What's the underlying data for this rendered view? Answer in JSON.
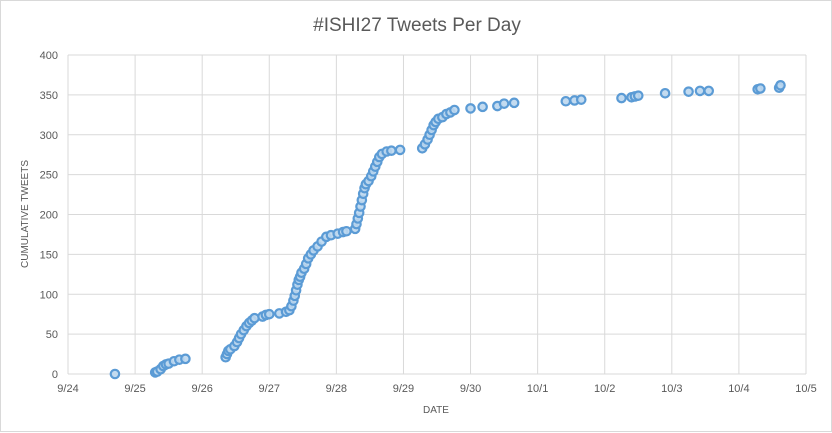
{
  "chart_data": {
    "type": "scatter",
    "title": "#ISHI27 Tweets Per Day",
    "xlabel": "DATE",
    "ylabel": "CUMULATIVE TWEETS",
    "x_ticks": [
      "9/24",
      "9/25",
      "9/26",
      "9/27",
      "9/28",
      "9/29",
      "9/30",
      "10/1",
      "10/2",
      "10/3",
      "10/4",
      "10/5"
    ],
    "y_ticks": [
      "0",
      "50",
      "100",
      "150",
      "200",
      "250",
      "300",
      "350",
      "400"
    ],
    "xlim_days": [
      0,
      11
    ],
    "ylim": [
      0,
      400
    ],
    "grid": true,
    "legend": "none",
    "marker_color": "#5b9bd5",
    "marker_fill": "#bdd7ee",
    "points": [
      [
        0.7,
        0
      ],
      [
        1.3,
        2
      ],
      [
        1.33,
        3
      ],
      [
        1.38,
        6
      ],
      [
        1.42,
        10
      ],
      [
        1.46,
        12
      ],
      [
        1.5,
        13
      ],
      [
        1.58,
        16
      ],
      [
        1.66,
        18
      ],
      [
        1.75,
        19
      ],
      [
        2.35,
        21
      ],
      [
        2.37,
        25
      ],
      [
        2.39,
        29
      ],
      [
        2.42,
        31
      ],
      [
        2.48,
        35
      ],
      [
        2.52,
        40
      ],
      [
        2.55,
        45
      ],
      [
        2.58,
        50
      ],
      [
        2.62,
        55
      ],
      [
        2.66,
        60
      ],
      [
        2.7,
        64
      ],
      [
        2.74,
        67
      ],
      [
        2.78,
        70
      ],
      [
        2.9,
        72
      ],
      [
        2.95,
        74
      ],
      [
        3.0,
        75
      ],
      [
        3.15,
        76
      ],
      [
        3.25,
        78
      ],
      [
        3.3,
        80
      ],
      [
        3.33,
        85
      ],
      [
        3.36,
        92
      ],
      [
        3.38,
        98
      ],
      [
        3.4,
        105
      ],
      [
        3.42,
        112
      ],
      [
        3.44,
        118
      ],
      [
        3.46,
        122
      ],
      [
        3.48,
        127
      ],
      [
        3.52,
        132
      ],
      [
        3.55,
        138
      ],
      [
        3.58,
        145
      ],
      [
        3.62,
        150
      ],
      [
        3.66,
        155
      ],
      [
        3.72,
        160
      ],
      [
        3.78,
        166
      ],
      [
        3.85,
        172
      ],
      [
        3.92,
        174
      ],
      [
        4.02,
        176
      ],
      [
        4.1,
        178
      ],
      [
        4.15,
        179
      ],
      [
        4.28,
        182
      ],
      [
        4.3,
        188
      ],
      [
        4.32,
        195
      ],
      [
        4.34,
        202
      ],
      [
        4.36,
        210
      ],
      [
        4.38,
        218
      ],
      [
        4.4,
        226
      ],
      [
        4.42,
        233
      ],
      [
        4.44,
        238
      ],
      [
        4.48,
        242
      ],
      [
        4.52,
        248
      ],
      [
        4.55,
        254
      ],
      [
        4.58,
        260
      ],
      [
        4.61,
        266
      ],
      [
        4.64,
        272
      ],
      [
        4.68,
        276
      ],
      [
        4.75,
        279
      ],
      [
        4.82,
        280
      ],
      [
        4.95,
        281
      ],
      [
        5.28,
        283
      ],
      [
        5.32,
        288
      ],
      [
        5.36,
        294
      ],
      [
        5.39,
        300
      ],
      [
        5.42,
        306
      ],
      [
        5.45,
        312
      ],
      [
        5.48,
        316
      ],
      [
        5.52,
        320
      ],
      [
        5.58,
        322
      ],
      [
        5.64,
        326
      ],
      [
        5.7,
        328
      ],
      [
        5.76,
        331
      ],
      [
        6.0,
        333
      ],
      [
        6.18,
        335
      ],
      [
        6.4,
        336
      ],
      [
        6.5,
        339
      ],
      [
        6.65,
        340
      ],
      [
        7.42,
        342
      ],
      [
        7.55,
        343
      ],
      [
        7.65,
        344
      ],
      [
        8.25,
        346
      ],
      [
        8.4,
        347
      ],
      [
        8.45,
        348
      ],
      [
        8.5,
        349
      ],
      [
        8.9,
        352
      ],
      [
        9.25,
        354
      ],
      [
        9.42,
        355
      ],
      [
        9.55,
        355
      ],
      [
        10.28,
        357
      ],
      [
        10.32,
        358
      ],
      [
        10.6,
        359
      ],
      [
        10.62,
        362
      ]
    ]
  }
}
